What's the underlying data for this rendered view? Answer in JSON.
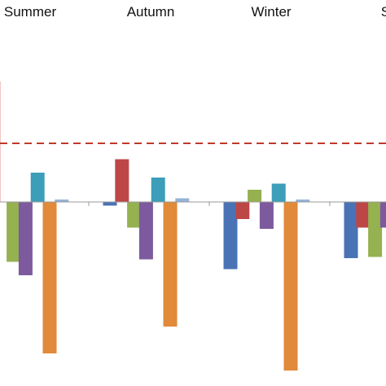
{
  "chart_data": {
    "type": "bar",
    "categories": [
      "Summer",
      "Autumn",
      "Winter",
      "Spr"
    ],
    "series": [
      {
        "color": "#4a73b5",
        "values": [
          null,
          -0.03,
          -0.55,
          -0.46
        ]
      },
      {
        "color": "#bd4747",
        "values": [
          null,
          0.35,
          -0.14,
          -0.21
        ]
      },
      {
        "color": "#95b150",
        "values": [
          -0.49,
          -0.21,
          0.1,
          -0.45
        ]
      },
      {
        "color": "#7d5a9e",
        "values": [
          -0.6,
          -0.47,
          -0.22,
          -0.21
        ]
      },
      {
        "color": "#3c9eb8",
        "values": [
          0.24,
          0.2,
          0.15,
          null
        ]
      },
      {
        "color": "#e08a3a",
        "values": [
          -1.24,
          -1.02,
          -1.38,
          null
        ]
      },
      {
        "color": "#95b3d8",
        "values": [
          0.02,
          0.03,
          0.02,
          null
        ]
      }
    ],
    "reference_line": {
      "value": 0.48,
      "style": "dashed",
      "color": "#c0392b"
    },
    "ylim": [
      -1.45,
      1.0
    ],
    "grid": false,
    "legend": "none"
  }
}
